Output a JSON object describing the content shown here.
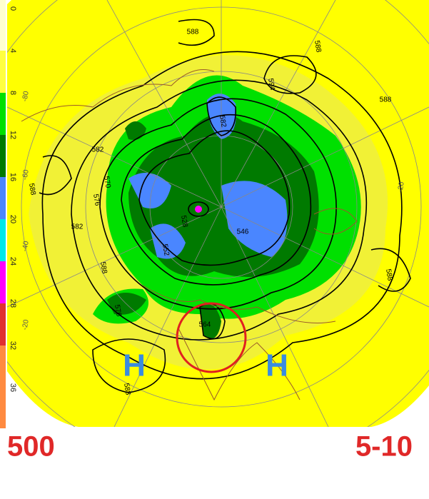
{
  "colorbar": {
    "ticks": [
      0,
      4,
      8,
      12,
      16,
      20,
      24,
      28,
      32,
      36
    ],
    "colors": [
      "#ffffd0",
      "#ffff40",
      "#00e000",
      "#007a00",
      "#4a86ff",
      "#00e8e8",
      "#ff00ff",
      "#e03030",
      "#ff8a40",
      "#ff8a40"
    ]
  },
  "map": {
    "contour_labels": [
      "588",
      "588",
      "594",
      "588",
      "582",
      "588",
      "582",
      "576",
      "570",
      "582",
      "528",
      "552",
      "546",
      "588",
      "576",
      "564",
      "588",
      "588"
    ],
    "lat_labels": [
      "-80",
      "-60",
      "-40",
      "-20",
      "-20"
    ],
    "highs": [
      "H",
      "H"
    ]
  },
  "footer": {
    "level": "500",
    "period": "5-10"
  }
}
